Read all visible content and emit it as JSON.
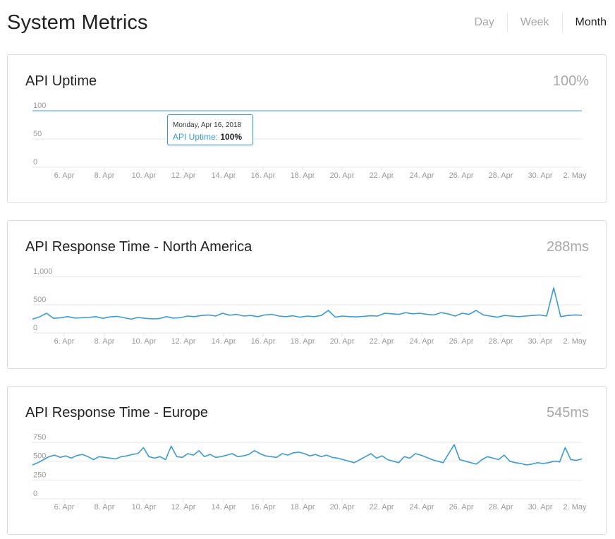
{
  "header": {
    "title": "System Metrics",
    "ranges": [
      "Day",
      "Week",
      "Month"
    ],
    "active_range": "Month"
  },
  "colors": {
    "line": "#3a9bd5",
    "grid": "#e6e6e6",
    "axis_text": "#999999",
    "muted": "#a8a8a8"
  },
  "cards": [
    {
      "title": "API Uptime",
      "value": "100%",
      "tooltip": {
        "date": "Monday, Apr 16, 2018",
        "series": "API Uptime",
        "value": "100%"
      }
    },
    {
      "title": "API Response Time - North America",
      "value": "288ms"
    },
    {
      "title": "API Response Time - Europe",
      "value": "545ms"
    }
  ],
  "chart_data": [
    {
      "type": "line",
      "title": "API Uptime",
      "x_range": [
        "2018-04-04",
        "2018-05-03"
      ],
      "x_tick_labels": [
        "6. Apr",
        "8. Apr",
        "10. Apr",
        "12. Apr",
        "14. Apr",
        "16. Apr",
        "18. Apr",
        "20. Apr",
        "22. Apr",
        "24. Apr",
        "26. Apr",
        "28. Apr",
        "30. Apr",
        "2. May"
      ],
      "y_tick_labels": [
        "0",
        "50",
        "100"
      ],
      "y_ticks": [
        0,
        50,
        100
      ],
      "ylim": [
        0,
        100
      ],
      "series": [
        {
          "values": [
            100,
            100,
            100,
            100,
            100,
            100,
            100,
            100,
            100,
            100,
            100,
            100,
            100,
            100,
            100,
            100,
            100,
            100,
            100,
            100,
            100,
            100,
            100,
            100,
            100,
            100,
            100,
            100,
            100,
            100,
            100
          ]
        }
      ]
    },
    {
      "type": "line",
      "title": "API Response Time - North America",
      "x_range": [
        "2018-04-04",
        "2018-05-03"
      ],
      "x_tick_labels": [
        "6. Apr",
        "8. Apr",
        "10. Apr",
        "12. Apr",
        "14. Apr",
        "16. Apr",
        "18. Apr",
        "20. Apr",
        "22. Apr",
        "24. Apr",
        "26. Apr",
        "28. Apr",
        "30. Apr",
        "2. May"
      ],
      "y_tick_labels": [
        "0",
        "500",
        "1,000"
      ],
      "y_ticks": [
        0,
        500,
        1000
      ],
      "ylim": [
        0,
        1000
      ],
      "series": [
        {
          "values": [
            245,
            285,
            350,
            260,
            270,
            290,
            265,
            270,
            275,
            290,
            260,
            285,
            295,
            270,
            245,
            275,
            260,
            250,
            255,
            290,
            265,
            270,
            300,
            290,
            310,
            320,
            300,
            350,
            315,
            330,
            300,
            310,
            290,
            320,
            330,
            300,
            290,
            305,
            280,
            300,
            290,
            310,
            400,
            280,
            300,
            290,
            285,
            295,
            305,
            300,
            350,
            340,
            330,
            360,
            340,
            350,
            330,
            320,
            360,
            340,
            300,
            350,
            330,
            400,
            320,
            300,
            280,
            310,
            300,
            290,
            300,
            310,
            320,
            300,
            800,
            290,
            310,
            320,
            315
          ]
        }
      ]
    },
    {
      "type": "line",
      "title": "API Response Time - Europe",
      "x_range": [
        "2018-04-04",
        "2018-05-03"
      ],
      "x_tick_labels": [
        "6. Apr",
        "8. Apr",
        "10. Apr",
        "12. Apr",
        "14. Apr",
        "16. Apr",
        "18. Apr",
        "20. Apr",
        "22. Apr",
        "24. Apr",
        "26. Apr",
        "28. Apr",
        "30. Apr",
        "2. May"
      ],
      "y_tick_labels": [
        "0",
        "250",
        "500",
        "750"
      ],
      "y_ticks": [
        0,
        250,
        500,
        750
      ],
      "ylim": [
        0,
        750
      ],
      "series": [
        {
          "values": [
            450,
            480,
            520,
            560,
            580,
            550,
            570,
            540,
            575,
            590,
            560,
            520,
            560,
            550,
            540,
            530,
            560,
            570,
            590,
            600,
            680,
            560,
            540,
            560,
            520,
            700,
            560,
            550,
            600,
            580,
            640,
            560,
            590,
            550,
            560,
            580,
            600,
            560,
            570,
            590,
            640,
            600,
            570,
            560,
            550,
            600,
            580,
            610,
            620,
            600,
            570,
            590,
            560,
            580,
            550,
            540,
            520,
            500,
            480,
            520,
            560,
            600,
            540,
            570,
            520,
            500,
            480,
            560,
            540,
            600,
            580,
            550,
            520,
            500,
            480,
            600,
            720,
            520,
            500,
            480,
            460,
            520,
            560,
            540,
            520,
            580,
            500,
            480,
            470,
            450,
            460,
            480,
            470,
            480,
            500,
            490,
            680,
            520,
            510,
            530
          ]
        }
      ]
    }
  ]
}
